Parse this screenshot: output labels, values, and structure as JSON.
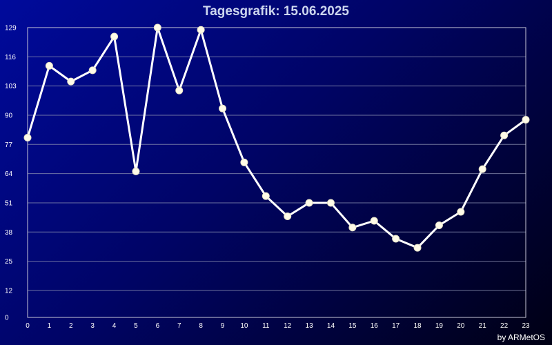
{
  "chart_data": {
    "type": "line",
    "title": "Tagesgrafik: 15.06.2025",
    "xlabel": "",
    "ylabel": "",
    "x": [
      0,
      1,
      2,
      3,
      4,
      5,
      6,
      7,
      8,
      9,
      10,
      11,
      12,
      13,
      14,
      15,
      16,
      17,
      18,
      19,
      20,
      21,
      22,
      23
    ],
    "x_ticks": [
      "0",
      "1",
      "2",
      "3",
      "4",
      "5",
      "6",
      "7",
      "8",
      "9",
      "10",
      "11",
      "12",
      "13",
      "14",
      "15",
      "16",
      "17",
      "18",
      "19",
      "20",
      "21",
      "22",
      "23"
    ],
    "y_ticks": [
      "0",
      "12",
      "25",
      "38",
      "51",
      "64",
      "77",
      "90",
      "103",
      "116",
      "129"
    ],
    "ylim": [
      0,
      129
    ],
    "grid": true,
    "series": [
      {
        "values": [
          80,
          112,
          105,
          110,
          125,
          65,
          129,
          101,
          128,
          93,
          69,
          54,
          45,
          51,
          51,
          40,
          43,
          35,
          31,
          41,
          47,
          66,
          81,
          88
        ]
      }
    ],
    "colors": {
      "line": "#ffffff",
      "marker": "#fffbe8",
      "grid": "#8a8fb0",
      "axis": "#c8c8d8"
    }
  },
  "credit": "by ARMetOS"
}
